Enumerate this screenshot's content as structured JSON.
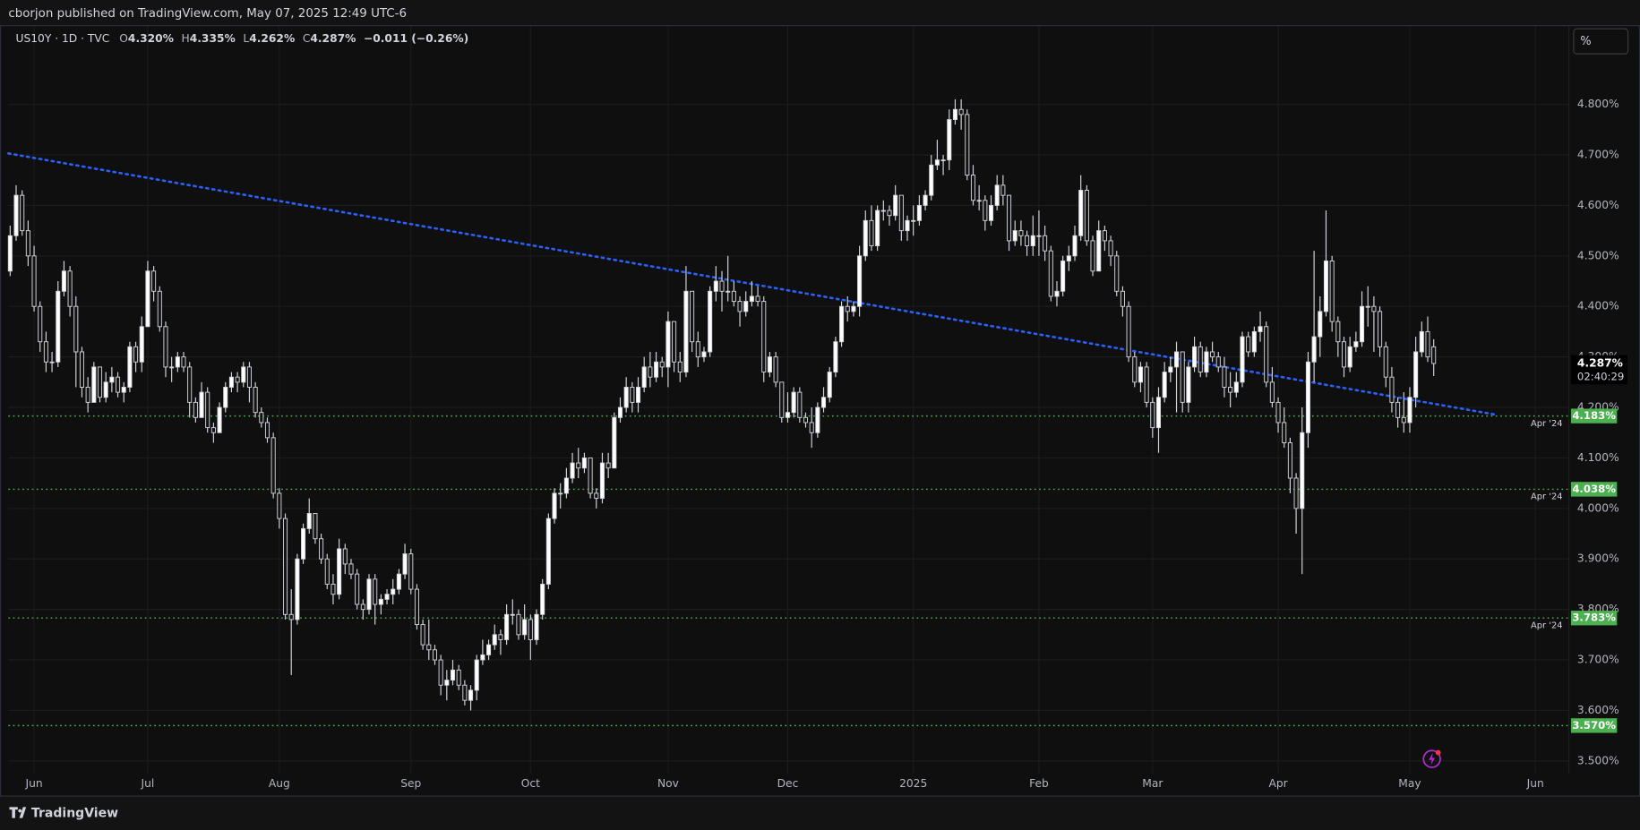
{
  "header": {
    "published": "cborjon published on TradingView.com, May 07, 2025 12:49 UTC-6"
  },
  "legend": {
    "symbol": "US10Y · 1D · TVC",
    "items": [
      {
        "key": "O",
        "value": "4.320%"
      },
      {
        "key": "H",
        "value": "4.335%"
      },
      {
        "key": "L",
        "value": "4.262%"
      },
      {
        "key": "C",
        "value": "4.287%"
      }
    ],
    "change": "−0.011 (−0.26%)"
  },
  "scale_button": "%",
  "footer": {
    "brand": "TradingView"
  },
  "chart_data": {
    "type": "candlestick",
    "open": [
      4.47,
      4.54,
      4.62,
      4.55,
      4.5,
      4.4,
      4.33,
      4.29,
      4.29,
      4.43,
      4.47,
      4.4,
      4.31,
      4.24,
      4.21,
      4.28,
      4.22,
      4.25,
      4.26,
      4.23,
      4.24,
      4.32,
      4.29,
      4.36,
      4.47,
      4.43,
      4.36,
      4.28,
      4.28,
      4.3,
      4.28,
      4.21,
      4.18,
      4.23,
      4.16,
      4.15,
      4.2,
      4.24,
      4.26,
      4.25,
      4.28,
      4.24,
      4.19,
      4.17,
      4.14,
      4.03,
      3.98,
      3.79,
      3.78,
      3.9,
      3.96,
      3.99,
      3.94,
      3.9,
      3.85,
      3.83,
      3.92,
      3.89,
      3.87,
      3.81,
      3.8,
      3.86,
      3.81,
      3.82,
      3.83,
      3.84,
      3.87,
      3.91,
      3.84,
      3.77,
      3.73,
      3.72,
      3.7,
      3.65,
      3.66,
      3.68,
      3.65,
      3.62,
      3.64,
      3.7,
      3.71,
      3.73,
      3.75,
      3.74,
      3.79,
      3.79,
      3.75,
      3.78,
      3.74,
      3.79,
      3.85,
      3.98,
      4.03,
      4.03,
      4.06,
      4.09,
      4.08,
      4.1,
      4.03,
      4.02,
      4.09,
      4.08,
      4.18,
      4.2,
      4.24,
      4.21,
      4.24,
      4.28,
      4.26,
      4.29,
      4.28,
      4.37,
      4.29,
      4.27,
      4.43,
      4.33,
      4.3,
      4.31,
      4.43,
      4.45,
      4.43,
      4.43,
      4.41,
      4.39,
      4.41,
      4.42,
      4.41,
      4.27,
      4.3,
      4.25,
      4.18,
      4.19,
      4.23,
      4.18,
      4.17,
      4.15,
      4.2,
      4.22,
      4.27,
      4.33,
      4.4,
      4.39,
      4.4,
      4.5,
      4.57,
      4.52,
      4.59,
      4.59,
      4.58,
      4.62,
      4.55,
      4.57,
      4.57,
      4.6,
      4.62,
      4.68,
      4.69,
      4.69,
      4.77,
      4.79,
      4.78,
      4.66,
      4.61,
      4.61,
      4.57,
      4.6,
      4.64,
      4.62,
      4.53,
      4.55,
      4.54,
      4.52,
      4.54,
      4.54,
      4.51,
      4.42,
      4.43,
      4.49,
      4.5,
      4.54,
      4.63,
      4.53,
      4.47,
      4.55,
      4.53,
      4.5,
      4.43,
      4.4,
      4.3,
      4.25,
      4.28,
      4.21,
      4.16,
      4.22,
      4.27,
      4.28,
      4.31,
      4.21,
      4.28,
      4.32,
      4.27,
      4.31,
      4.3,
      4.28,
      4.24,
      4.23,
      4.25,
      4.34,
      4.31,
      4.35,
      4.36,
      4.25,
      4.21,
      4.17,
      4.13,
      4.06,
      4.0,
      4.15,
      4.29,
      4.34,
      4.39,
      4.49,
      4.37,
      4.33,
      4.28,
      4.32,
      4.33,
      4.4,
      4.4,
      4.39,
      4.32,
      4.26,
      4.21,
      4.18,
      4.17,
      4.22,
      4.31,
      4.35,
      4.32
    ],
    "high": [
      4.56,
      4.64,
      4.63,
      4.57,
      4.52,
      4.41,
      4.35,
      4.31,
      4.45,
      4.49,
      4.48,
      4.42,
      4.32,
      4.26,
      4.29,
      4.28,
      4.27,
      4.28,
      4.27,
      4.25,
      4.33,
      4.33,
      4.38,
      4.49,
      4.48,
      4.44,
      4.37,
      4.3,
      4.31,
      4.31,
      4.29,
      4.22,
      4.25,
      4.24,
      4.17,
      4.21,
      4.25,
      4.27,
      4.27,
      4.29,
      4.29,
      4.25,
      4.2,
      4.18,
      4.15,
      4.04,
      3.99,
      3.84,
      3.91,
      3.97,
      4.02,
      3.99,
      3.95,
      3.91,
      3.87,
      3.94,
      3.93,
      3.9,
      3.88,
      3.82,
      3.87,
      3.87,
      3.83,
      3.84,
      3.86,
      3.88,
      3.93,
      3.92,
      3.85,
      3.78,
      3.78,
      3.73,
      3.71,
      3.68,
      3.7,
      3.69,
      3.66,
      3.65,
      3.71,
      3.74,
      3.74,
      3.77,
      3.76,
      3.81,
      3.82,
      3.8,
      3.81,
      3.79,
      3.8,
      3.86,
      3.99,
      4.04,
      4.05,
      4.08,
      4.11,
      4.12,
      4.11,
      4.1,
      4.04,
      4.11,
      4.11,
      4.19,
      4.22,
      4.26,
      4.25,
      4.26,
      4.3,
      4.31,
      4.31,
      4.3,
      4.39,
      4.37,
      4.31,
      4.48,
      4.43,
      4.35,
      4.32,
      4.44,
      4.48,
      4.47,
      4.5,
      4.45,
      4.42,
      4.43,
      4.45,
      4.44,
      4.42,
      4.31,
      4.31,
      4.25,
      4.23,
      4.24,
      4.24,
      4.19,
      4.2,
      4.21,
      4.24,
      4.28,
      4.34,
      4.41,
      4.42,
      4.41,
      4.52,
      4.59,
      4.6,
      4.6,
      4.61,
      4.6,
      4.64,
      4.62,
      4.58,
      4.6,
      4.62,
      4.63,
      4.7,
      4.73,
      4.7,
      4.79,
      4.81,
      4.81,
      4.79,
      4.68,
      4.64,
      4.62,
      4.62,
      4.66,
      4.66,
      4.62,
      4.57,
      4.57,
      4.55,
      4.58,
      4.59,
      4.56,
      4.52,
      4.45,
      4.5,
      4.52,
      4.56,
      4.66,
      4.64,
      4.54,
      4.57,
      4.56,
      4.54,
      4.51,
      4.44,
      4.41,
      4.31,
      4.29,
      4.29,
      4.22,
      4.24,
      4.29,
      4.3,
      4.33,
      4.31,
      4.29,
      4.34,
      4.33,
      4.32,
      4.33,
      4.31,
      4.3,
      4.27,
      4.27,
      4.35,
      4.35,
      4.36,
      4.39,
      4.37,
      4.28,
      4.22,
      4.2,
      4.14,
      4.07,
      4.2,
      4.31,
      4.51,
      4.42,
      4.59,
      4.5,
      4.38,
      4.34,
      4.34,
      4.35,
      4.43,
      4.44,
      4.42,
      4.4,
      4.33,
      4.28,
      4.22,
      4.23,
      4.24,
      4.34,
      4.37,
      4.38,
      4.335
    ],
    "low": [
      4.46,
      4.53,
      4.54,
      4.48,
      4.39,
      4.31,
      4.27,
      4.27,
      4.28,
      4.42,
      4.38,
      4.24,
      4.22,
      4.19,
      4.21,
      4.21,
      4.21,
      4.23,
      4.22,
      4.21,
      4.23,
      4.27,
      4.27,
      4.36,
      4.41,
      4.35,
      4.26,
      4.25,
      4.27,
      4.27,
      4.18,
      4.17,
      4.18,
      4.15,
      4.13,
      4.15,
      4.19,
      4.23,
      4.23,
      4.24,
      4.21,
      4.18,
      4.16,
      4.13,
      4.02,
      3.96,
      3.78,
      3.67,
      3.77,
      3.89,
      3.95,
      3.93,
      3.89,
      3.84,
      3.81,
      3.82,
      3.87,
      3.86,
      3.8,
      3.78,
      3.79,
      3.77,
      3.79,
      3.81,
      3.81,
      3.83,
      3.86,
      3.83,
      3.76,
      3.72,
      3.7,
      3.69,
      3.63,
      3.62,
      3.65,
      3.64,
      3.61,
      3.6,
      3.62,
      3.69,
      3.7,
      3.72,
      3.71,
      3.73,
      3.77,
      3.74,
      3.74,
      3.7,
      3.73,
      3.78,
      3.84,
      3.97,
      4.0,
      4.02,
      4.05,
      4.06,
      4.07,
      4.02,
      4.0,
      4.01,
      4.06,
      4.08,
      4.17,
      4.19,
      4.19,
      4.19,
      4.23,
      4.24,
      4.25,
      4.26,
      4.24,
      4.27,
      4.25,
      4.26,
      4.31,
      4.28,
      4.29,
      4.3,
      4.41,
      4.39,
      4.41,
      4.4,
      4.36,
      4.38,
      4.4,
      4.4,
      4.25,
      4.26,
      4.24,
      4.17,
      4.17,
      4.18,
      4.17,
      4.16,
      4.12,
      4.14,
      4.19,
      4.21,
      4.26,
      4.32,
      4.37,
      4.38,
      4.38,
      4.49,
      4.51,
      4.51,
      4.57,
      4.56,
      4.57,
      4.53,
      4.53,
      4.54,
      4.56,
      4.59,
      4.61,
      4.67,
      4.66,
      4.67,
      4.76,
      4.75,
      4.65,
      4.6,
      4.59,
      4.55,
      4.56,
      4.59,
      4.6,
      4.51,
      4.52,
      4.52,
      4.5,
      4.5,
      4.5,
      4.49,
      4.41,
      4.4,
      4.42,
      4.47,
      4.49,
      4.53,
      4.52,
      4.46,
      4.47,
      4.51,
      4.48,
      4.42,
      4.38,
      4.29,
      4.24,
      4.23,
      4.2,
      4.14,
      4.11,
      4.21,
      4.25,
      4.19,
      4.19,
      4.19,
      4.27,
      4.26,
      4.26,
      4.29,
      4.27,
      4.22,
      4.2,
      4.22,
      4.24,
      4.3,
      4.3,
      4.33,
      4.24,
      4.2,
      4.15,
      4.12,
      4.03,
      3.95,
      3.87,
      4.12,
      4.25,
      4.3,
      4.38,
      4.35,
      4.3,
      4.26,
      4.27,
      4.31,
      4.32,
      4.36,
      4.31,
      4.3,
      4.24,
      4.19,
      4.16,
      4.15,
      4.15,
      4.2,
      4.3,
      4.29,
      4.262
    ],
    "close": [
      4.54,
      4.62,
      4.55,
      4.5,
      4.4,
      4.33,
      4.29,
      4.29,
      4.43,
      4.47,
      4.4,
      4.31,
      4.24,
      4.21,
      4.28,
      4.22,
      4.25,
      4.26,
      4.23,
      4.24,
      4.32,
      4.29,
      4.36,
      4.47,
      4.43,
      4.36,
      4.28,
      4.28,
      4.3,
      4.28,
      4.21,
      4.18,
      4.23,
      4.16,
      4.15,
      4.2,
      4.24,
      4.26,
      4.25,
      4.28,
      4.24,
      4.19,
      4.17,
      4.14,
      4.03,
      3.98,
      3.79,
      3.78,
      3.9,
      3.96,
      3.99,
      3.94,
      3.9,
      3.85,
      3.83,
      3.92,
      3.89,
      3.87,
      3.81,
      3.8,
      3.86,
      3.81,
      3.82,
      3.83,
      3.84,
      3.87,
      3.91,
      3.84,
      3.77,
      3.73,
      3.72,
      3.7,
      3.65,
      3.66,
      3.68,
      3.65,
      3.62,
      3.64,
      3.7,
      3.71,
      3.73,
      3.75,
      3.74,
      3.79,
      3.79,
      3.75,
      3.78,
      3.74,
      3.79,
      3.85,
      3.98,
      4.03,
      4.03,
      4.06,
      4.09,
      4.08,
      4.1,
      4.03,
      4.02,
      4.09,
      4.08,
      4.18,
      4.2,
      4.24,
      4.21,
      4.24,
      4.28,
      4.26,
      4.29,
      4.28,
      4.37,
      4.29,
      4.27,
      4.43,
      4.33,
      4.3,
      4.31,
      4.43,
      4.45,
      4.43,
      4.43,
      4.41,
      4.39,
      4.41,
      4.42,
      4.41,
      4.27,
      4.3,
      4.25,
      4.18,
      4.19,
      4.23,
      4.18,
      4.17,
      4.15,
      4.2,
      4.22,
      4.27,
      4.33,
      4.4,
      4.39,
      4.4,
      4.5,
      4.57,
      4.52,
      4.59,
      4.59,
      4.58,
      4.62,
      4.55,
      4.57,
      4.57,
      4.6,
      4.62,
      4.68,
      4.69,
      4.69,
      4.77,
      4.79,
      4.78,
      4.66,
      4.61,
      4.61,
      4.57,
      4.6,
      4.64,
      4.62,
      4.53,
      4.55,
      4.54,
      4.52,
      4.54,
      4.54,
      4.51,
      4.42,
      4.43,
      4.49,
      4.5,
      4.54,
      4.63,
      4.53,
      4.47,
      4.55,
      4.53,
      4.5,
      4.43,
      4.4,
      4.3,
      4.25,
      4.28,
      4.21,
      4.16,
      4.22,
      4.27,
      4.28,
      4.31,
      4.21,
      4.28,
      4.32,
      4.27,
      4.31,
      4.3,
      4.28,
      4.24,
      4.23,
      4.25,
      4.34,
      4.31,
      4.35,
      4.36,
      4.25,
      4.21,
      4.17,
      4.13,
      4.06,
      4.0,
      4.15,
      4.29,
      4.34,
      4.39,
      4.49,
      4.37,
      4.33,
      4.28,
      4.32,
      4.33,
      4.4,
      4.4,
      4.39,
      4.32,
      4.26,
      4.21,
      4.18,
      4.17,
      4.22,
      4.31,
      4.35,
      4.3,
      4.287
    ],
    "up_color": "#ffffff",
    "down_color": "#131313",
    "wick_color": "#d1d4dc",
    "last_price": {
      "label": "4.287%",
      "countdown": "02:40:29"
    },
    "xlim": [
      -0.3,
      260.6
    ],
    "xticks": [
      {
        "value": 4,
        "label": "Jun"
      },
      {
        "value": 23,
        "label": "Jul"
      },
      {
        "value": 45,
        "label": "Aug"
      },
      {
        "value": 67,
        "label": "Sep"
      },
      {
        "value": 87,
        "label": "Oct"
      },
      {
        "value": 110,
        "label": "Nov"
      },
      {
        "value": 130,
        "label": "Dec"
      },
      {
        "value": 151,
        "label": "2025"
      },
      {
        "value": 172,
        "label": "Feb"
      },
      {
        "value": 191,
        "label": "Mar"
      },
      {
        "value": 212,
        "label": "Apr"
      },
      {
        "value": 234,
        "label": "May"
      },
      {
        "value": 255,
        "label": "Jun"
      }
    ],
    "ylim": [
      3.475,
      4.955
    ],
    "yticks": [
      {
        "value": 3.5,
        "label": "3.500%"
      },
      {
        "value": 3.6,
        "label": "3.600%"
      },
      {
        "value": 3.7,
        "label": "3.700%"
      },
      {
        "value": 3.8,
        "label": "3.800%"
      },
      {
        "value": 3.9,
        "label": "3.900%"
      },
      {
        "value": 4.0,
        "label": "4.000%"
      },
      {
        "value": 4.1,
        "label": "4.100%"
      },
      {
        "value": 4.2,
        "label": "4.200%"
      },
      {
        "value": 4.3,
        "label": "4.300%"
      },
      {
        "value": 4.4,
        "label": "4.400%"
      },
      {
        "value": 4.5,
        "label": "4.500%"
      },
      {
        "value": 4.6,
        "label": "4.600%"
      },
      {
        "value": 4.7,
        "label": "4.700%"
      },
      {
        "value": 4.8,
        "label": "4.800%"
      }
    ],
    "grid": true,
    "levels": [
      {
        "value": 4.183,
        "label": "4.183%",
        "note": "Apr '24"
      },
      {
        "value": 4.038,
        "label": "4.038%",
        "note": "Apr '24"
      },
      {
        "value": 3.783,
        "label": "3.783%",
        "note": "Apr '24"
      },
      {
        "value": 3.57,
        "label": "3.570%"
      }
    ],
    "level_color": "#4caf50",
    "trendline": {
      "x": [
        -0.3,
        248.7
      ],
      "y": [
        4.703,
        4.185
      ],
      "color": "#2962ff"
    }
  }
}
